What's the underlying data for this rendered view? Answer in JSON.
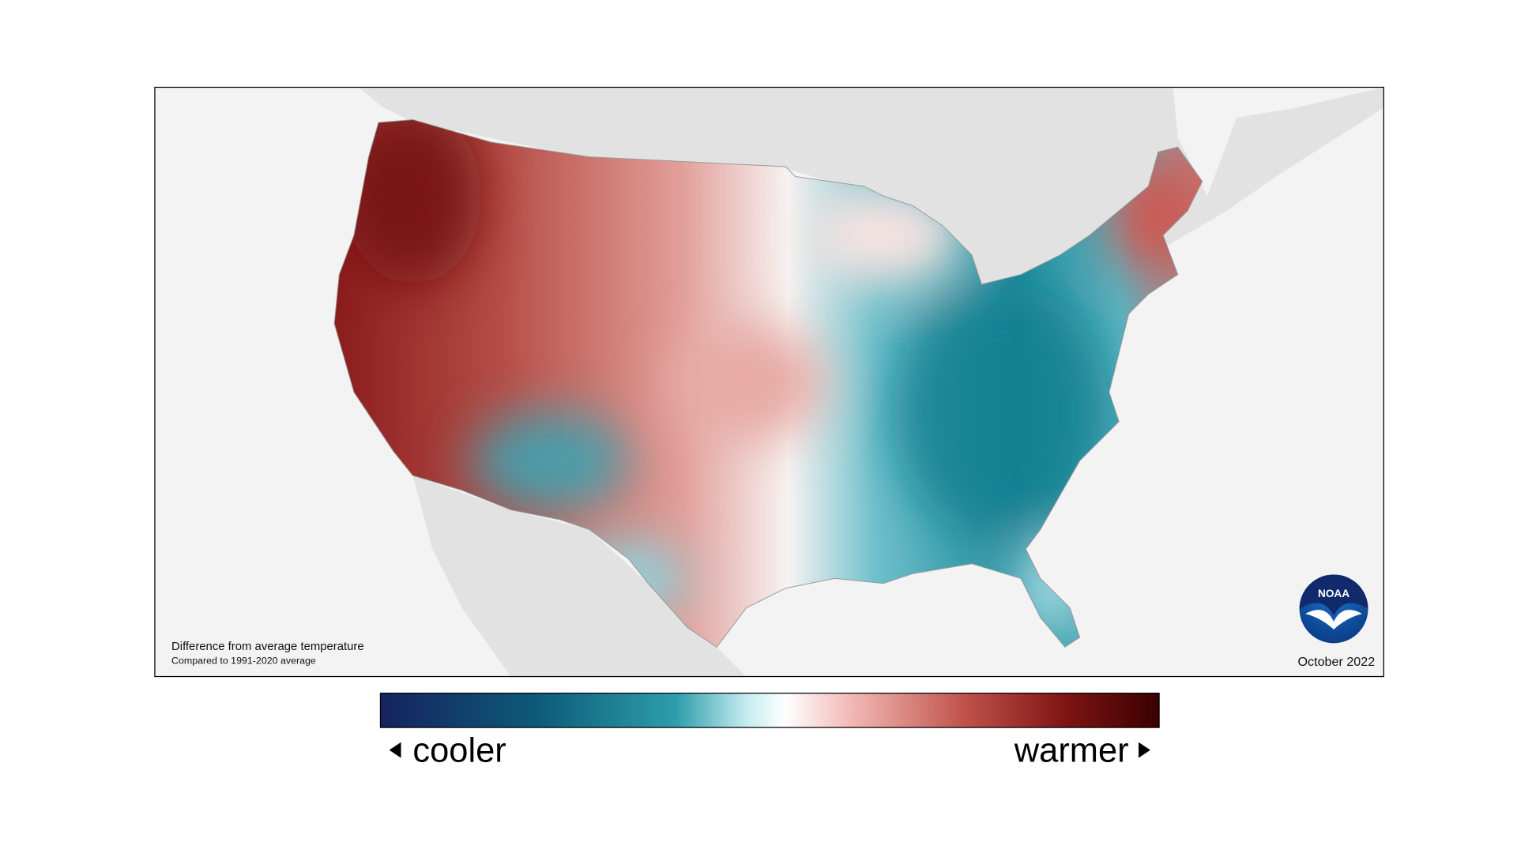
{
  "map": {
    "caption": {
      "title": "Difference from average temperature",
      "subtitle": "Compared to 1991-2020 average"
    },
    "date": "October 2022",
    "logo": "NOAA"
  },
  "legend": {
    "low": "cooler",
    "high": "warmer"
  }
}
